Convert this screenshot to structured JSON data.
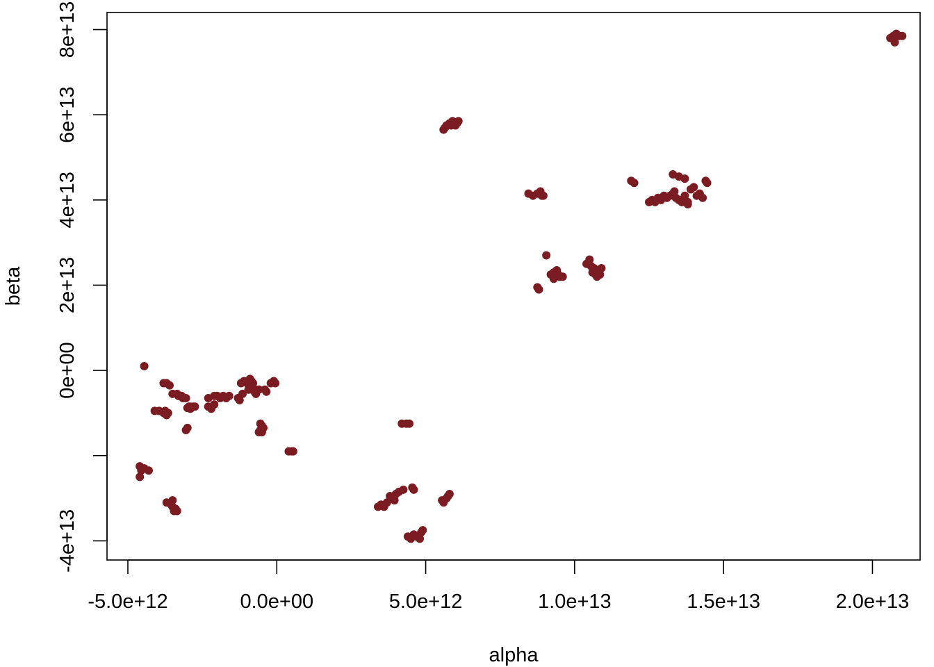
{
  "chart_data": {
    "type": "scatter",
    "title": "",
    "xlabel": "alpha",
    "ylabel": "beta",
    "xlim": [
      -5700000000000.0,
      21600000000000.0
    ],
    "ylim": [
      -44500000000000.0,
      84000000000000.0
    ],
    "grid": false,
    "legend": "none",
    "x_ticks": [
      {
        "value": -5000000000000.0,
        "label": "-5.0e+12"
      },
      {
        "value": 0,
        "label": "0.0e+00"
      },
      {
        "value": 5000000000000.0,
        "label": "5.0e+12"
      },
      {
        "value": 10000000000000.0,
        "label": "1.0e+13"
      },
      {
        "value": 15000000000000.0,
        "label": "1.5e+13"
      },
      {
        "value": 20000000000000.0,
        "label": "2.0e+13"
      }
    ],
    "y_ticks": [
      {
        "value": -40000000000000.0,
        "label": "-4e+13"
      },
      {
        "value": -20000000000000.0,
        "label": ""
      },
      {
        "value": 0,
        "label": "0e+00"
      },
      {
        "value": 20000000000000.0,
        "label": "2e+13"
      },
      {
        "value": 40000000000000.0,
        "label": "4e+13"
      },
      {
        "value": 60000000000000.0,
        "label": "6e+13"
      },
      {
        "value": 80000000000000.0,
        "label": "8e+13"
      }
    ],
    "marker_color": "#7b1c22",
    "series": [
      {
        "x": [
          -4600000000000.0,
          -4550000000000.0,
          -4450000000000.0,
          -4300000000000.0,
          -4600000000000.0,
          -3700000000000.0,
          -3550000000000.0,
          -3500000000000.0,
          -3400000000000.0,
          -3500000000000.0,
          -3350000000000.0,
          -3450000000000.0,
          -3400000000000.0,
          -3000000000000.0,
          -3050000000000.0,
          -2950000000000.0,
          -2900000000000.0,
          -3000000000000.0,
          -3950000000000.0,
          -3800000000000.0,
          -3700000000000.0,
          -3750000000000.0,
          -3650000000000.0,
          -3800000000000.0,
          -3600000000000.0,
          -3700000000000.0,
          -3500000000000.0,
          -3300000000000.0,
          -3200000000000.0,
          -3150000000000.0,
          -3200000000000.0,
          -3050000000000.0,
          -2900000000000.0,
          -2800000000000.0,
          -2750000000000.0,
          -2300000000000.0,
          -2300000000000.0,
          -2200000000000.0,
          -2100000000000.0,
          -2000000000000.0,
          -2100000000000.0,
          -1900000000000.0,
          -1800000000000.0,
          -1700000000000.0,
          -1600000000000.0,
          -1300000000000.0,
          -1250000000000.0,
          -1150000000000.0,
          -1200000000000.0,
          -1100000000000.0,
          -1000000000000.0,
          -900000000000.0,
          -850000000000.0,
          -800000000000.0,
          -950000000000.0,
          -750000000000.0,
          -700000000000.0,
          -800000000000.0,
          -600000000000.0,
          -550000000000.0,
          -500000000000.0,
          -450000000000.0,
          -600000000000.0,
          -550000000000.0,
          -500000000000.0,
          -400000000000.0,
          -350000000000.0,
          -200000000000.0,
          -100000000000.0,
          -50000000000.0,
          400000000000.0,
          500000000000.0,
          550000000000.0,
          4200000000000.0,
          4350000000000.0,
          4450000000000.0,
          3400000000000.0,
          3500000000000.0,
          3600000000000.0,
          3700000000000.0,
          3800000000000.0,
          3900000000000.0,
          4000000000000.0,
          3950000000000.0,
          4100000000000.0,
          4250000000000.0,
          4550000000000.0,
          4600000000000.0,
          4400000000000.0,
          4500000000000.0,
          4600000000000.0,
          4700000000000.0,
          4800000000000.0,
          4850000000000.0,
          4900000000000.0,
          5550000000000.0,
          5600000000000.0,
          5700000000000.0,
          5750000000000.0,
          5800000000000.0,
          5600000000000.0,
          5650000000000.0,
          5700000000000.0,
          5800000000000.0,
          5850000000000.0,
          5900000000000.0,
          6050000000000.0,
          6100000000000.0,
          6000000000000.0,
          8450000000000.0,
          8600000000000.0,
          8750000000000.0,
          8900000000000.0,
          8950000000000.0,
          8850000000000.0,
          8750000000000.0,
          8800000000000.0,
          9050000000000.0,
          9200000000000.0,
          9300000000000.0,
          9400000000000.0,
          9500000000000.0,
          9300000000000.0,
          9450000000000.0,
          9550000000000.0,
          9600000000000.0,
          10400000000000.0,
          10500000000000.0,
          10550000000000.0,
          10600000000000.0,
          10700000000000.0,
          10650000000000.0,
          10750000000000.0,
          10800000000000.0,
          10900000000000.0,
          10850000000000.0,
          11900000000000.0,
          12000000000000.0,
          12500000000000.0,
          12600000000000.0,
          12700000000000.0,
          12800000000000.0,
          12900000000000.0,
          13000000000000.0,
          13100000000000.0,
          13200000000000.0,
          13300000000000.0,
          13350000000000.0,
          13400000000000.0,
          13500000000000.0,
          13600000000000.0,
          13700000000000.0,
          13800000000000.0,
          13900000000000.0,
          14000000000000.0,
          14100000000000.0,
          14200000000000.0,
          14300000000000.0,
          14400000000000.0,
          14450000000000.0,
          13300000000000.0,
          13500000000000.0,
          13700000000000.0,
          13600000000000.0,
          13800000000000.0,
          20600000000000.0,
          20700000000000.0,
          20800000000000.0,
          20900000000000.0,
          21000000000000.0,
          20750000000000.0
        ],
        "y": [
          -22500000000000.0,
          -23500000000000.0,
          -23000000000000.0,
          -23500000000000.0,
          -25000000000000.0,
          -31000000000000.0,
          -31500000000000.0,
          -32000000000000.0,
          -32500000000000.0,
          -30500000000000.0,
          -33000000000000.0,
          -33000000000000.0,
          -32500000000000.0,
          -13500000000000.0,
          -14000000000000.0,
          -8500000000000.0,
          -9000000000000.0,
          -8800000000000.0,
          -9500000000000.0,
          -10000000000000.0,
          -10500000000000.0,
          -9500000000000.0,
          -10000000000000.0,
          -3000000000000.0,
          -3500000000000.0,
          -3000000000000.0,
          -5500000000000.0,
          -6000000000000.0,
          -6000000000000.0,
          -6500000000000.0,
          -6000000000000.0,
          -6500000000000.0,
          -8500000000000.0,
          -8500000000000.0,
          -8500000000000.0,
          -6500000000000.0,
          -8500000000000.0,
          -9000000000000.0,
          -8000000000000.0,
          -6000000000000.0,
          -6000000000000.0,
          -6500000000000.0,
          -6000000000000.0,
          -6500000000000.0,
          -6000000000000.0,
          -6500000000000.0,
          -7000000000000.0,
          -5500000000000.0,
          -3000000000000.0,
          -2500000000000.0,
          -3000000000000.0,
          -2000000000000.0,
          -2500000000000.0,
          -3000000000000.0,
          -4500000000000.0,
          -5000000000000.0,
          -5500000000000.0,
          -4000000000000.0,
          -4500000000000.0,
          -12500000000000.0,
          -13000000000000.0,
          -13500000000000.0,
          -14500000000000.0,
          -14000000000000.0,
          -14500000000000.0,
          -4500000000000.0,
          -5000000000000.0,
          -3000000000000.0,
          -2500000000000.0,
          -3000000000000.0,
          -19000000000000.0,
          -19000000000000.0,
          -19000000000000.0,
          -12500000000000.0,
          -12500000000000.0,
          -12500000000000.0,
          -32000000000000.0,
          -31500000000000.0,
          -32000000000000.0,
          -31000000000000.0,
          -29500000000000.0,
          -30000000000000.0,
          -29000000000000.0,
          -30500000000000.0,
          -28500000000000.0,
          -28000000000000.0,
          -27500000000000.0,
          -28000000000000.0,
          -39000000000000.0,
          -39500000000000.0,
          -38500000000000.0,
          -39000000000000.0,
          -39500000000000.0,
          -38000000000000.0,
          -37500000000000.0,
          -30500000000000.0,
          -31000000000000.0,
          -30000000000000.0,
          -29500000000000.0,
          -29000000000000.0,
          56500000000000.0,
          57000000000000.0,
          57500000000000.0,
          58000000000000.0,
          57500000000000.0,
          58500000000000.0,
          58000000000000.0,
          58500000000000.0,
          57500000000000.0,
          41500000000000.0,
          41000000000000.0,
          41500000000000.0,
          41000000000000.0,
          41000000000000.0,
          42000000000000.0,
          19500000000000.0,
          19000000000000.0,
          27000000000000.0,
          22500000000000.0,
          23000000000000.0,
          23500000000000.0,
          22000000000000.0,
          21500000000000.0,
          22500000000000.0,
          22000000000000.0,
          22000000000000.0,
          25000000000000.0,
          26000000000000.0,
          24500000000000.0,
          23000000000000.0,
          22500000000000.0,
          24000000000000.0,
          22000000000000.0,
          23500000000000.0,
          24000000000000.0,
          22500000000000.0,
          44500000000000.0,
          44000000000000.0,
          39500000000000.0,
          40000000000000.0,
          39500000000000.0,
          40500000000000.0,
          40000000000000.0,
          41000000000000.0,
          40500000000000.0,
          41000000000000.0,
          41500000000000.0,
          42000000000000.0,
          40500000000000.0,
          40000000000000.0,
          39500000000000.0,
          41000000000000.0,
          39000000000000.0,
          42500000000000.0,
          43000000000000.0,
          41000000000000.0,
          41500000000000.0,
          40500000000000.0,
          44500000000000.0,
          44000000000000.0,
          46000000000000.0,
          45500000000000.0,
          45000000000000.0,
          40000000000000.0,
          39500000000000.0,
          78000000000000.0,
          78500000000000.0,
          79000000000000.0,
          78500000000000.0,
          78500000000000.0,
          77000000000000.0
        ]
      },
      {
        "x": [
          -4450000000000.0,
          -4100000000000.0,
          -3350000000000.0
        ],
        "y": [
          1000000000000.0,
          -9500000000000.0,
          -5500000000000.0
        ]
      }
    ]
  }
}
